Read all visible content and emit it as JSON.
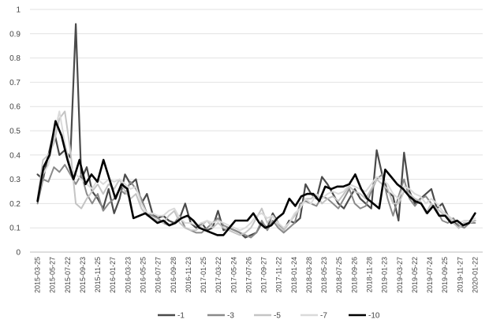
{
  "chart_data": {
    "type": "line",
    "title": "",
    "xlabel": "",
    "ylabel": "",
    "ylim": [
      0,
      1
    ],
    "yticks": [
      "0",
      "0.1",
      "0.2",
      "0.3",
      "0.4",
      "0.5",
      "0.6",
      "0.7",
      "0.8",
      "0.9",
      "1"
    ],
    "grid": "horizontal",
    "legend_position": "bottom",
    "x_tick_labels": [
      "2015-03-25",
      "2015-05-27",
      "2015-07-22",
      "2015-09-23",
      "2015-11-25",
      "2016-01-27",
      "2016-03-23",
      "2016-05-25",
      "2016-07-27",
      "2016-09-28",
      "2016-11-23",
      "2017-01-25",
      "2017-03-22",
      "2017-05-24",
      "2017-07-26",
      "2017-09-27",
      "2017-11-22",
      "2018-01-24",
      "2018-03-28",
      "2018-05-23",
      "2018-07-25",
      "2018-09-26",
      "2018-11-28",
      "2019-01-23",
      "2019-03-27",
      "2019-05-22",
      "2019-07-24",
      "2019-09-25",
      "2019-11-27",
      "2020-01-22"
    ],
    "series": [
      {
        "name": "-1",
        "color": "#4a4a4a",
        "width": 2.2,
        "values": [
          0.32,
          0.3,
          0.4,
          0.5,
          0.4,
          0.42,
          0.39,
          0.94,
          0.3,
          0.35,
          0.25,
          0.22,
          0.18,
          0.26,
          0.16,
          0.22,
          0.32,
          0.28,
          0.3,
          0.2,
          0.24,
          0.16,
          0.14,
          0.15,
          0.13,
          0.12,
          0.14,
          0.2,
          0.12,
          0.1,
          0.12,
          0.09,
          0.1,
          0.17,
          0.09,
          0.1,
          0.09,
          0.08,
          0.06,
          0.07,
          0.08,
          0.12,
          0.1,
          0.16,
          0.12,
          0.09,
          0.13,
          0.12,
          0.14,
          0.28,
          0.24,
          0.22,
          0.31,
          0.28,
          0.24,
          0.2,
          0.18,
          0.22,
          0.26,
          0.22,
          0.2,
          0.18,
          0.42,
          0.32,
          0.25,
          0.23,
          0.13,
          0.41,
          0.25,
          0.2,
          0.22,
          0.24,
          0.26,
          0.18,
          0.2,
          0.15,
          0.13,
          0.1,
          0.12,
          0.12,
          0.13
        ]
      },
      {
        "name": "-3",
        "color": "#8a8a8a",
        "width": 2,
        "values": [
          0.2,
          0.3,
          0.29,
          0.35,
          0.33,
          0.36,
          0.32,
          0.28,
          0.32,
          0.24,
          0.2,
          0.24,
          0.17,
          0.2,
          0.22,
          0.26,
          0.24,
          0.29,
          0.26,
          0.22,
          0.16,
          0.15,
          0.14,
          0.12,
          0.11,
          0.12,
          0.15,
          0.1,
          0.09,
          0.08,
          0.08,
          0.1,
          0.12,
          0.14,
          0.11,
          0.1,
          0.09,
          0.08,
          0.07,
          0.06,
          0.08,
          0.13,
          0.09,
          0.13,
          0.1,
          0.08,
          0.1,
          0.12,
          0.2,
          0.21,
          0.2,
          0.19,
          0.23,
          0.22,
          0.2,
          0.18,
          0.22,
          0.26,
          0.2,
          0.18,
          0.19,
          0.25,
          0.3,
          0.32,
          0.22,
          0.15,
          0.23,
          0.3,
          0.22,
          0.19,
          0.22,
          0.23,
          0.2,
          0.17,
          0.13,
          0.12,
          0.14,
          0.11,
          0.1,
          0.12,
          0.12
        ]
      },
      {
        "name": "-5",
        "color": "#c4c4c4",
        "width": 2,
        "values": [
          0.22,
          0.38,
          0.4,
          0.45,
          0.55,
          0.58,
          0.42,
          0.2,
          0.18,
          0.22,
          0.25,
          0.28,
          0.24,
          0.28,
          0.26,
          0.3,
          0.25,
          0.22,
          0.24,
          0.18,
          0.15,
          0.14,
          0.13,
          0.12,
          0.15,
          0.17,
          0.12,
          0.1,
          0.09,
          0.09,
          0.11,
          0.13,
          0.1,
          0.12,
          0.1,
          0.09,
          0.08,
          0.07,
          0.08,
          0.1,
          0.14,
          0.18,
          0.12,
          0.15,
          0.11,
          0.09,
          0.12,
          0.15,
          0.18,
          0.22,
          0.22,
          0.24,
          0.2,
          0.22,
          0.23,
          0.21,
          0.24,
          0.27,
          0.25,
          0.24,
          0.22,
          0.26,
          0.3,
          0.28,
          0.26,
          0.2,
          0.2,
          0.25,
          0.24,
          0.22,
          0.21,
          0.16,
          0.2,
          0.18,
          0.16,
          0.14,
          0.12,
          0.1,
          0.12,
          0.12,
          0.13
        ]
      },
      {
        "name": "-7",
        "color": "#dadada",
        "width": 2,
        "values": [
          0.21,
          0.32,
          0.36,
          0.48,
          0.58,
          0.45,
          0.35,
          0.32,
          0.3,
          0.28,
          0.26,
          0.3,
          0.28,
          0.3,
          0.29,
          0.3,
          0.28,
          0.26,
          0.27,
          0.2,
          0.16,
          0.16,
          0.15,
          0.15,
          0.17,
          0.18,
          0.14,
          0.12,
          0.12,
          0.11,
          0.12,
          0.13,
          0.12,
          0.13,
          0.12,
          0.11,
          0.1,
          0.09,
          0.1,
          0.12,
          0.15,
          0.16,
          0.14,
          0.15,
          0.12,
          0.1,
          0.12,
          0.16,
          0.18,
          0.22,
          0.2,
          0.24,
          0.22,
          0.24,
          0.25,
          0.24,
          0.25,
          0.28,
          0.27,
          0.26,
          0.25,
          0.28,
          0.31,
          0.3,
          0.28,
          0.24,
          0.22,
          0.27,
          0.26,
          0.24,
          0.23,
          0.2,
          0.22,
          0.2,
          0.17,
          0.15,
          0.13,
          0.12,
          0.13,
          0.13,
          0.14
        ]
      },
      {
        "name": "-10",
        "color": "#000000",
        "width": 2.6,
        "values": [
          0.21,
          0.35,
          0.4,
          0.54,
          0.48,
          0.38,
          0.3,
          0.38,
          0.28,
          0.32,
          0.29,
          0.38,
          0.3,
          0.22,
          0.28,
          0.26,
          0.14,
          0.15,
          0.16,
          0.14,
          0.12,
          0.13,
          0.11,
          0.12,
          0.14,
          0.15,
          0.13,
          0.1,
          0.09,
          0.08,
          0.07,
          0.07,
          0.1,
          0.13,
          0.13,
          0.13,
          0.16,
          0.12,
          0.1,
          0.11,
          0.14,
          0.16,
          0.22,
          0.19,
          0.23,
          0.24,
          0.24,
          0.21,
          0.27,
          0.26,
          0.27,
          0.27,
          0.28,
          0.32,
          0.26,
          0.22,
          0.2,
          0.18,
          0.34,
          0.31,
          0.28,
          0.26,
          0.23,
          0.21,
          0.2,
          0.16,
          0.19,
          0.15,
          0.15,
          0.12,
          0.13,
          0.11,
          0.12,
          0.16
        ]
      }
    ]
  }
}
